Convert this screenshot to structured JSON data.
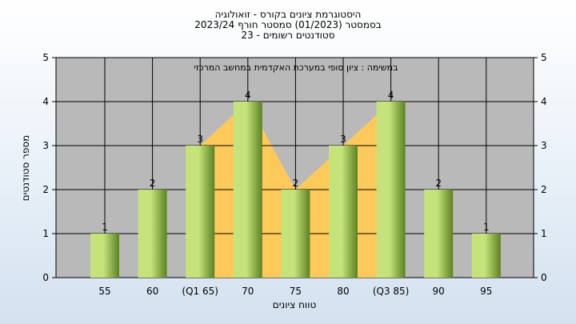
{
  "chart_data": {
    "type": "bar",
    "title_lines": [
      "היסטוגרמת ציונים בקורס - זואולוגיה",
      "בסמסטר  (01/2023)  סמסטר חורף 2023/24",
      "סטודנטים רשומים - 23"
    ],
    "annotation": "במשימה : ציון סופי במערכת האקדמית במחשב המרכזי",
    "xlabel": "טווח ציונים",
    "ylabel": "מספר סטודנטים",
    "categories": [
      "55",
      "60",
      "(Q1 65)",
      "70",
      "75",
      "80",
      "(Q3 85)",
      "90",
      "95"
    ],
    "values": [
      1,
      2,
      3,
      4,
      2,
      3,
      4,
      2,
      1
    ],
    "ylim": [
      0,
      5
    ],
    "yticks": [
      0,
      1,
      2,
      3,
      4,
      5
    ],
    "grid": true,
    "show_data_labels": true,
    "iqr_band": {
      "from_category": "(Q1 65)",
      "to_category": "(Q3 85)"
    },
    "colors": {
      "plot_background": "#b9b9b9",
      "bar_light": "#c6e27a",
      "bar_dark": "#5b8224",
      "iqr_fill": "#fdc95a",
      "grid": "#000000"
    }
  }
}
